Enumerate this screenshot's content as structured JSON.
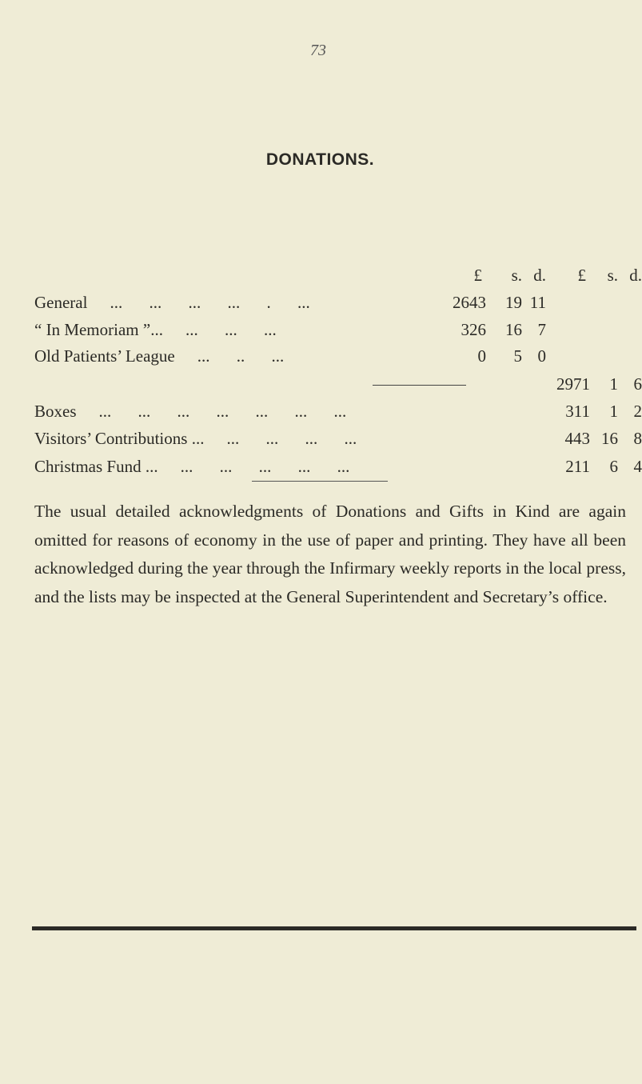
{
  "page_number": "73",
  "title": "DONATIONS.",
  "header": {
    "pounds": "£",
    "shillings": "s.",
    "pence": "d."
  },
  "rows": [
    {
      "label": "General",
      "leader": "     ...      ...      ...      ...    . ...",
      "c1": [
        "2643",
        "19",
        "11"
      ]
    },
    {
      "label": "“ In Memoriam ”...",
      "leader": "                          ...      ...      ...",
      "c1": [
        "326",
        "16",
        "7"
      ]
    },
    {
      "label": "Old Patients’ League",
      "leader": "                                ...      ..       ...",
      "c1": [
        "0",
        "5",
        "0"
      ]
    },
    {
      "label": "",
      "leader": "",
      "c2": [
        "2971",
        "1",
        "6"
      ]
    },
    {
      "label": "Boxes",
      "leader": "       ...      ...      ...      ...      ...      ...      ...",
      "c2": [
        "311",
        "1",
        "2"
      ]
    },
    {
      "label": "Visitors’ Contributions ...",
      "leader": "                                  ...      ...      ...      ...",
      "c2": [
        "443",
        "16",
        "8"
      ]
    },
    {
      "label": "Christmas Fund ...",
      "leader": "                      ...      ...      ...      ...      ...",
      "c2": [
        "211",
        "6",
        "4"
      ]
    }
  ],
  "paragraph": "The usual detailed acknowledgments of Donations and Gifts in Kind are again omitted for reasons of economy in the use of paper and printing. They have all been acknowledged during the year through the Infirmary weekly reports in the local press, and the lists may be inspected at the General Superintendent and Secretary’s office."
}
